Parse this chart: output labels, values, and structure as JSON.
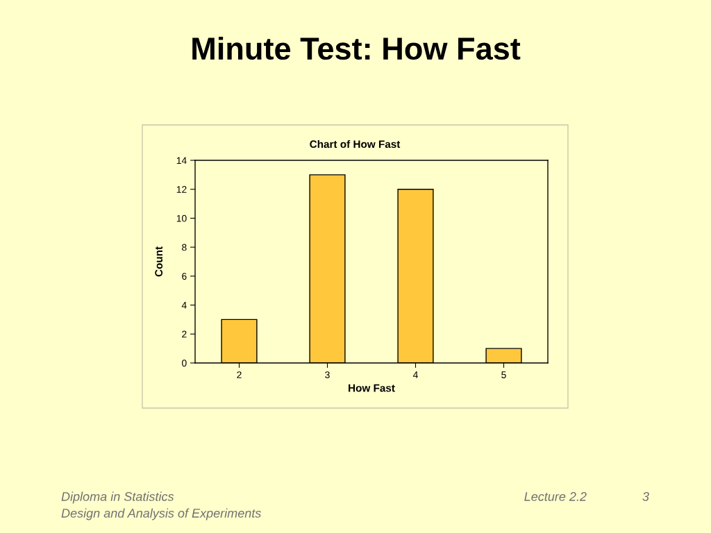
{
  "chart_data": {
    "type": "bar",
    "title": "Minute Test: How Fast",
    "subtitle": "Chart of How Fast",
    "xlabel": "How Fast",
    "ylabel": "Count",
    "categories": [
      "2",
      "3",
      "4",
      "5"
    ],
    "values": [
      3,
      13,
      12,
      1
    ],
    "color": "#ffc83c",
    "ylim": [
      0,
      14
    ],
    "yticks": [
      0,
      2,
      4,
      6,
      8,
      10,
      12,
      14
    ],
    "grid": false,
    "annotations": [
      "Diploma in Statistics",
      "Design and Analysis of Experiments",
      "Lecture 2.2",
      "3"
    ]
  }
}
